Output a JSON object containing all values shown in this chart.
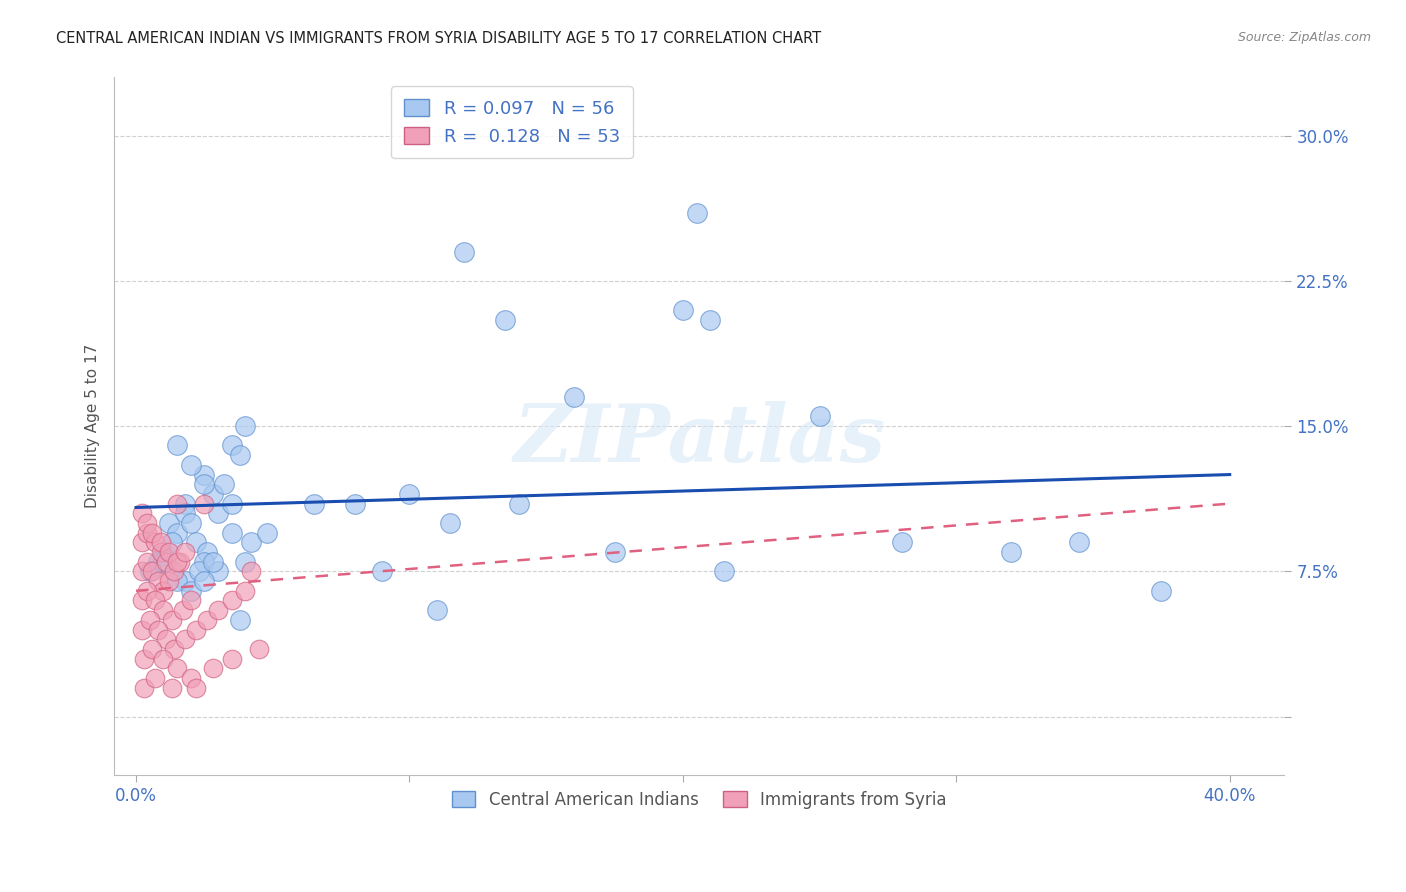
{
  "title": "CENTRAL AMERICAN INDIAN VS IMMIGRANTS FROM SYRIA DISABILITY AGE 5 TO 17 CORRELATION CHART",
  "source": "Source: ZipAtlas.com",
  "ylabel": "Disability Age 5 to 17",
  "legend1_label": "Central American Indians",
  "legend2_label": "Immigrants from Syria",
  "R1": 0.097,
  "N1": 56,
  "R2": 0.128,
  "N2": 53,
  "blue_color": "#a8c8f0",
  "pink_color": "#f0a0b8",
  "blue_edge_color": "#6090d0",
  "pink_edge_color": "#d06080",
  "blue_line_color": "#1a4db0",
  "pink_line_color": "#e06080",
  "watermark": "ZIPatlas",
  "xlim": [
    -0.8,
    42.0
  ],
  "ylim": [
    -3.0,
    33.0
  ],
  "xticks": [
    0,
    10,
    20,
    30,
    40
  ],
  "xticklabels": [
    "0.0%",
    "",
    "",
    "",
    "40.0%"
  ],
  "yticks": [
    0,
    7.5,
    15.0,
    22.5,
    30.0
  ],
  "yticklabels": [
    "",
    "7.5%",
    "15.0%",
    "22.5%",
    "30.0%"
  ],
  "blue_dots_x": [
    2.5,
    3.5,
    4.0,
    3.8,
    1.5,
    2.0,
    2.8,
    3.2,
    1.8,
    2.5,
    3.0,
    4.2,
    1.2,
    1.8,
    2.2,
    2.6,
    3.5,
    4.8,
    1.0,
    1.5,
    2.0,
    2.5,
    3.0,
    4.0,
    0.8,
    1.3,
    1.8,
    2.3,
    2.8,
    3.5,
    0.5,
    1.0,
    1.5,
    2.0,
    2.5,
    3.8,
    10.0,
    11.5,
    14.0,
    16.0,
    20.0,
    21.0,
    25.0,
    28.0,
    32.0,
    34.5,
    37.5,
    6.5,
    8.0,
    11.0,
    20.5,
    12.0,
    9.0,
    21.5,
    17.5,
    13.5
  ],
  "blue_dots_y": [
    12.5,
    14.0,
    15.0,
    13.5,
    14.0,
    13.0,
    11.5,
    12.0,
    11.0,
    12.0,
    10.5,
    9.0,
    10.0,
    10.5,
    9.0,
    8.5,
    11.0,
    9.5,
    8.5,
    9.5,
    10.0,
    8.0,
    7.5,
    8.0,
    8.0,
    9.0,
    7.0,
    7.5,
    8.0,
    9.5,
    7.5,
    8.0,
    7.0,
    6.5,
    7.0,
    5.0,
    11.5,
    10.0,
    11.0,
    16.5,
    21.0,
    20.5,
    15.5,
    9.0,
    8.5,
    9.0,
    6.5,
    11.0,
    11.0,
    5.5,
    26.0,
    24.0,
    7.5,
    7.5,
    8.5,
    20.5
  ],
  "pink_dots_x": [
    0.2,
    0.4,
    0.6,
    0.8,
    1.0,
    1.2,
    0.2,
    0.4,
    0.7,
    0.9,
    1.1,
    1.4,
    1.6,
    0.2,
    0.4,
    0.6,
    0.9,
    1.2,
    1.5,
    1.8,
    0.2,
    0.4,
    0.7,
    1.0,
    1.3,
    1.7,
    2.0,
    0.2,
    0.5,
    0.8,
    1.1,
    1.4,
    1.8,
    2.2,
    2.6,
    3.0,
    3.5,
    4.0,
    0.3,
    0.6,
    1.0,
    1.5,
    2.0,
    2.8,
    3.5,
    4.5,
    1.5,
    2.5,
    0.3,
    0.7,
    1.3,
    2.2,
    4.2
  ],
  "pink_dots_y": [
    7.5,
    8.0,
    7.5,
    7.0,
    6.5,
    7.0,
    9.0,
    9.5,
    9.0,
    8.5,
    8.0,
    7.5,
    8.0,
    10.5,
    10.0,
    9.5,
    9.0,
    8.5,
    8.0,
    8.5,
    6.0,
    6.5,
    6.0,
    5.5,
    5.0,
    5.5,
    6.0,
    4.5,
    5.0,
    4.5,
    4.0,
    3.5,
    4.0,
    4.5,
    5.0,
    5.5,
    6.0,
    6.5,
    3.0,
    3.5,
    3.0,
    2.5,
    2.0,
    2.5,
    3.0,
    3.5,
    11.0,
    11.0,
    1.5,
    2.0,
    1.5,
    1.5,
    7.5
  ],
  "blue_line_x": [
    0.0,
    40.0
  ],
  "blue_line_y": [
    10.8,
    12.5
  ],
  "pink_line_x": [
    0.0,
    40.0
  ],
  "pink_line_y": [
    6.5,
    11.0
  ]
}
